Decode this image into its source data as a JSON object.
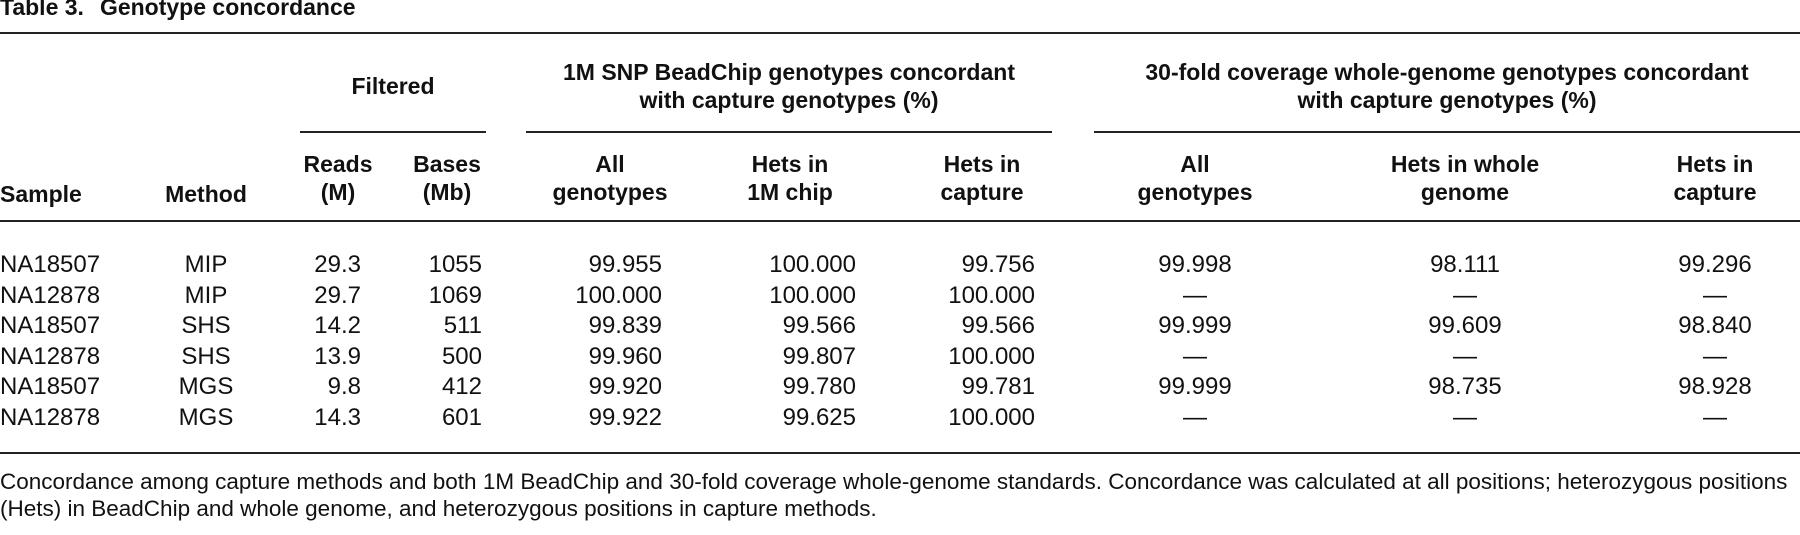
{
  "table": {
    "title_label": "Table 3.",
    "title_text": "Genotype concordance",
    "group_headers": {
      "filtered": "Filtered",
      "beadchip_line1": "1M SNP BeadChip genotypes concordant",
      "beadchip_line2": "with capture genotypes (%)",
      "wgs_line1": "30-fold coverage whole-genome genotypes concordant",
      "wgs_line2": "with capture genotypes (%)"
    },
    "columns": [
      [
        "Sample"
      ],
      [
        "Method"
      ],
      [
        "Reads",
        "(M)"
      ],
      [
        "Bases",
        "(Mb)"
      ],
      [
        "All",
        "genotypes"
      ],
      [
        "Hets in",
        "1M chip"
      ],
      [
        "Hets in",
        "capture"
      ],
      [
        "All",
        "genotypes"
      ],
      [
        "Hets in whole",
        "genome"
      ],
      [
        "Hets in",
        "capture"
      ]
    ],
    "rows": [
      [
        "NA18507",
        "MIP",
        "29.3",
        "1055",
        "99.955",
        "100.000",
        "99.756",
        "99.998",
        "98.111",
        "99.296"
      ],
      [
        "NA12878",
        "MIP",
        "29.7",
        "1069",
        "100.000",
        "100.000",
        "100.000",
        "—",
        "—",
        "—"
      ],
      [
        "NA18507",
        "SHS",
        "14.2",
        "511",
        "99.839",
        "99.566",
        "99.566",
        "99.999",
        "99.609",
        "98.840"
      ],
      [
        "NA12878",
        "SHS",
        "13.9",
        "500",
        "99.960",
        "99.807",
        "100.000",
        "—",
        "—",
        "—"
      ],
      [
        "NA18507",
        "MGS",
        "9.8",
        "412",
        "99.920",
        "99.780",
        "99.781",
        "99.999",
        "98.735",
        "98.928"
      ],
      [
        "NA12878",
        "MGS",
        "14.3",
        "601",
        "99.922",
        "99.625",
        "100.000",
        "—",
        "—",
        "—"
      ]
    ],
    "footnote": "Concordance among capture methods and both 1M BeadChip and 30-fold coverage whole-genome standards. Concordance was calculated at all positions; heterozygous positions (Hets) in BeadChip and whole genome, and heterozygous positions in capture methods."
  }
}
